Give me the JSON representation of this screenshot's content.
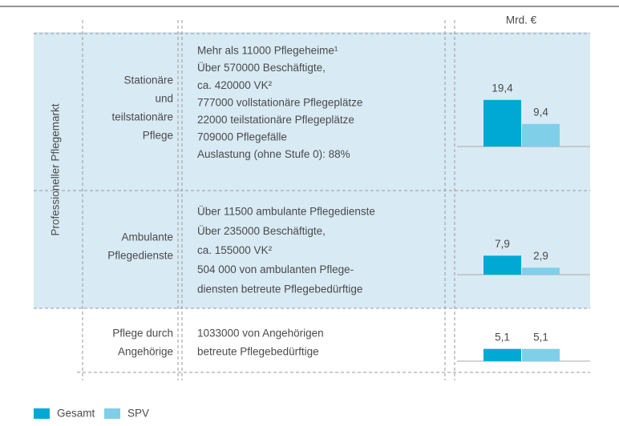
{
  "unit": "Mrd. €",
  "side_label": "Professioneller Pflegemarkt",
  "legend": [
    {
      "name": "Gesamt",
      "color": "#00a9d4"
    },
    {
      "name": "SPV",
      "color": "#7fcfe9"
    }
  ],
  "rows": [
    {
      "label": [
        "Stationäre",
        "und",
        "teilstationäre",
        "Pflege"
      ],
      "details": [
        "Mehr als 11000 Pflegeheime¹",
        "Über 570000 Beschäftigte,",
        "ca. 420000 VK²",
        "777000  vollstationäre Pflegeplätze",
        "22000 teilstationäre Pflegeplätze",
        "709000 Pflegefälle",
        "Auslastung (ohne Stufe 0): 88%"
      ],
      "values": [
        19.4,
        9.4
      ],
      "value_labels": [
        "19,4",
        "9,4"
      ]
    },
    {
      "label": [
        "Ambulante",
        "Pflegedienste"
      ],
      "details": [
        "Über 11500 ambulante Pflegedienste",
        "Über 235000 Beschäftigte,",
        "ca. 155000 VK²",
        "504 000 von ambulanten Pflege-",
        "diensten betreute Pflegebedürftige"
      ],
      "values": [
        7.9,
        2.9
      ],
      "value_labels": [
        "7,9",
        "2,9"
      ]
    },
    {
      "label": [
        "Pflege durch",
        "Angehörige"
      ],
      "details": [
        "1033000 von Angehörigen",
        "betreute Pflegebedürftige"
      ],
      "values": [
        5.1,
        5.1
      ],
      "value_labels": [
        "5,1",
        "5,1"
      ]
    }
  ]
}
